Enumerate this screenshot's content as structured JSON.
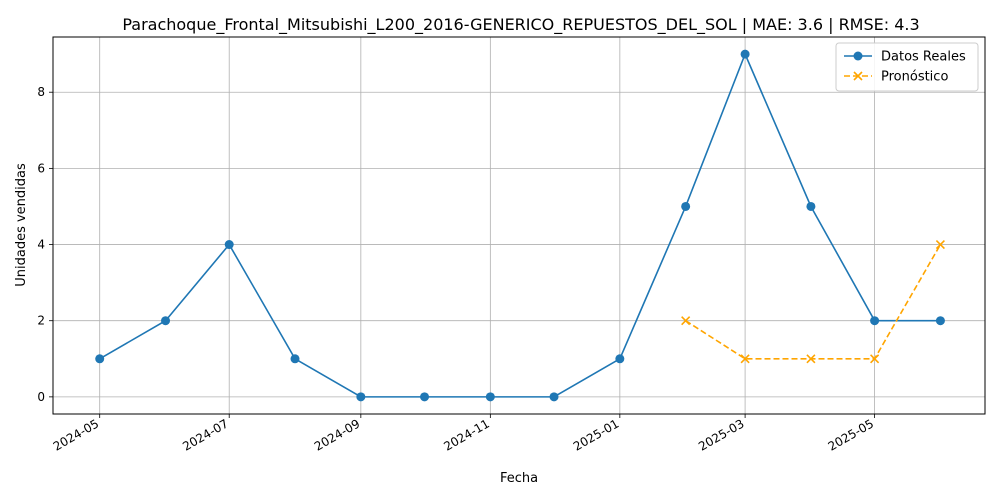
{
  "chart_data": {
    "type": "line",
    "title": "Parachoque_Frontal_Mitsubishi_L200_2016-GENERICO_REPUESTOS_DEL_SOL | MAE: 3.6 | RMSE: 4.3",
    "xlabel": "Fecha",
    "ylabel": "Unidades vendidas",
    "xlim": [
      "2024-04-09",
      "2025-06-22"
    ],
    "ylim": [
      -0.45,
      9.45
    ],
    "grid": true,
    "legend_position": "top-right",
    "x_ticks": [
      "2024-05",
      "2024-07",
      "2024-09",
      "2024-11",
      "2025-01",
      "2025-03",
      "2025-05"
    ],
    "y_ticks": [
      0,
      2,
      4,
      6,
      8
    ],
    "series": [
      {
        "name": "Datos Reales",
        "color": "#1f77b4",
        "line_style": "solid",
        "marker": "circle",
        "points": [
          {
            "x": "2024-05-01",
            "y": 1
          },
          {
            "x": "2024-06-01",
            "y": 2
          },
          {
            "x": "2024-07-01",
            "y": 4
          },
          {
            "x": "2024-08-01",
            "y": 1
          },
          {
            "x": "2024-09-01",
            "y": 0
          },
          {
            "x": "2024-10-01",
            "y": 0
          },
          {
            "x": "2024-11-01",
            "y": 0
          },
          {
            "x": "2024-12-01",
            "y": 0
          },
          {
            "x": "2025-01-01",
            "y": 1
          },
          {
            "x": "2025-02-01",
            "y": 5
          },
          {
            "x": "2025-03-01",
            "y": 9
          },
          {
            "x": "2025-04-01",
            "y": 5
          },
          {
            "x": "2025-05-01",
            "y": 2
          },
          {
            "x": "2025-06-01",
            "y": 2
          }
        ]
      },
      {
        "name": "Pronóstico",
        "color": "#ffa500",
        "line_style": "dashed",
        "marker": "x",
        "points": [
          {
            "x": "2025-02-01",
            "y": 2
          },
          {
            "x": "2025-03-01",
            "y": 1
          },
          {
            "x": "2025-04-01",
            "y": 1
          },
          {
            "x": "2025-05-01",
            "y": 1
          },
          {
            "x": "2025-06-01",
            "y": 4
          }
        ]
      }
    ]
  }
}
